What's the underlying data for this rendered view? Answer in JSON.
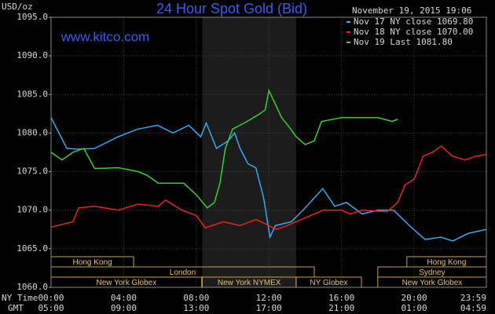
{
  "chart_data": {
    "type": "line",
    "title": "24 Hour Spot Gold (Bid)",
    "source": "www.kitco.com",
    "timestamp": "November 19, 2015 19:06",
    "ylabel": "USD/oz",
    "xlabel": "NY Time",
    "x2label": "GMT",
    "xlim": [
      0,
      23.98
    ],
    "ylim": [
      1060,
      1095
    ],
    "yticks": [
      {
        "value": 1060,
        "label": "1060.0"
      },
      {
        "value": 1065,
        "label": "1065.0"
      },
      {
        "value": 1070,
        "label": "1070.0"
      },
      {
        "value": 1075,
        "label": "1075.0"
      },
      {
        "value": 1080,
        "label": "1080.0"
      },
      {
        "value": 1085,
        "label": "1085.0"
      },
      {
        "value": 1090,
        "label": "1090.0"
      },
      {
        "value": 1095,
        "label": "1095.0"
      }
    ],
    "xticks": [
      {
        "value": 0,
        "label": "00:00"
      },
      {
        "value": 4,
        "label": "04:00"
      },
      {
        "value": 8,
        "label": "08:00"
      },
      {
        "value": 12,
        "label": "12:00"
      },
      {
        "value": 16,
        "label": "16:00"
      },
      {
        "value": 20,
        "label": "20:00"
      },
      {
        "value": 23.98,
        "label": "23:59"
      }
    ],
    "x2ticks": [
      {
        "value": 0,
        "label": "05:00"
      },
      {
        "value": 4,
        "label": "09:00"
      },
      {
        "value": 8,
        "label": "13:00"
      },
      {
        "value": 12,
        "label": "17:00"
      },
      {
        "value": 16,
        "label": "21:00"
      },
      {
        "value": 20,
        "label": "01:00"
      },
      {
        "value": 23.98,
        "label": "04:59"
      }
    ],
    "grid": true,
    "shade": [
      8.33,
      13.5
    ],
    "sessions": [
      [
        {
          "name": "Hong Kong",
          "start": 0,
          "end": 4.55
        },
        {
          "name": "Hong Kong",
          "start": 19.6,
          "end": 23.98
        }
      ],
      [
        {
          "name": "London",
          "start": 0,
          "end": 14.5
        },
        {
          "name": "Sydney",
          "start": 18,
          "end": 23.98
        }
      ],
      [
        {
          "name": "New York Globex",
          "start": 0,
          "end": 8.3
        },
        {
          "name": "New York NYMEX",
          "start": 8.33,
          "end": 13.5
        },
        {
          "name": "NY Globex",
          "start": 13.5,
          "end": 17.1
        },
        {
          "name": "New York Globex",
          "start": 18,
          "end": 23.98
        }
      ]
    ],
    "series": [
      {
        "name": "Nov 17 NY close 1069.80",
        "color": "#33b5ff",
        "x": [
          0,
          0.87,
          1.52,
          2.39,
          3.69,
          4.77,
          5.86,
          6.72,
          7.59,
          8.24,
          8.55,
          9.11,
          9.76,
          10.11,
          10.41,
          10.85,
          11.28,
          11.71,
          12.06,
          12.36,
          13.23,
          13.88,
          14.97,
          15.62,
          16.27,
          17.14,
          18.0,
          18.87,
          19.74,
          20.61,
          21.48,
          22.13,
          22.99,
          23.98
        ],
        "values": [
          1082,
          1078,
          1077.9,
          1078,
          1079.5,
          1080.5,
          1081,
          1080,
          1081,
          1079.5,
          1081.3,
          1078,
          1079,
          1080,
          1078,
          1076,
          1075.5,
          1071.6,
          1066.5,
          1068,
          1068.5,
          1070,
          1072.8,
          1070.5,
          1071,
          1069.5,
          1070,
          1070,
          1068,
          1066.2,
          1066.5,
          1066,
          1067,
          1067.5
        ]
      },
      {
        "name": "Nov 18 NY close 1070.00",
        "color": "#ff2020",
        "x": [
          0,
          1.2,
          1.52,
          2.4,
          3.7,
          4.8,
          5.9,
          6.3,
          7.2,
          8.0,
          8.5,
          9.5,
          10.4,
          11.3,
          12.0,
          12.4,
          13.0,
          14.0,
          15.0,
          16.0,
          16.5,
          17.1,
          18.5,
          19.1,
          19.5,
          20.0,
          20.5,
          21.0,
          21.5,
          22.1,
          22.8,
          23.4,
          23.98
        ],
        "values": [
          1067.8,
          1068.5,
          1070.3,
          1070.5,
          1070,
          1070.8,
          1070.5,
          1071.3,
          1070,
          1069.3,
          1067.7,
          1068.5,
          1068,
          1068.8,
          1068,
          1067.5,
          1068,
          1069,
          1070,
          1070,
          1069.5,
          1070,
          1069.8,
          1071,
          1073.3,
          1074,
          1077,
          1077.5,
          1078.3,
          1077,
          1076.5,
          1077,
          1077.2
        ]
      },
      {
        "name": "Nov 19 Last 1081.80",
        "color": "#33dd33",
        "x": [
          0,
          0.6,
          1.2,
          1.8,
          2.4,
          3.7,
          4.8,
          5.3,
          5.9,
          7.3,
          8.0,
          8.6,
          9.0,
          9.3,
          9.6,
          10.0,
          10.8,
          11.5,
          11.8,
          12.0,
          12.3,
          12.7,
          13.2,
          13.5,
          14.0,
          14.5,
          14.9,
          16.0,
          17.0,
          18.0,
          18.8,
          19.1
        ],
        "values": [
          1077.5,
          1076.5,
          1077.5,
          1078,
          1075.4,
          1075.5,
          1075,
          1074.5,
          1073.5,
          1073.5,
          1072,
          1070.3,
          1071,
          1073.5,
          1078,
          1080.5,
          1081.5,
          1082.5,
          1083,
          1085.5,
          1084,
          1082,
          1080.5,
          1079.5,
          1078.5,
          1079,
          1081.5,
          1082,
          1082,
          1082,
          1081.5,
          1081.8
        ]
      }
    ]
  }
}
